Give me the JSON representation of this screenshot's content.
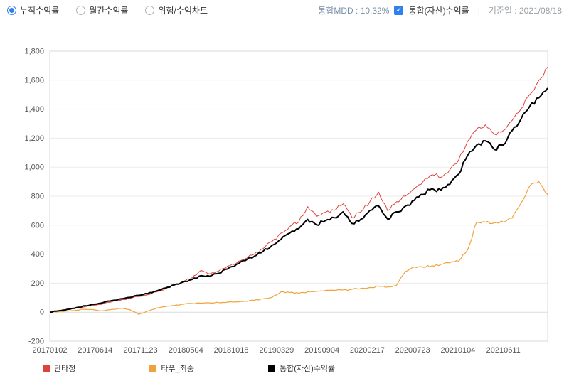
{
  "header": {
    "radio_group": [
      {
        "label": "누적수익률",
        "selected": true
      },
      {
        "label": "월간수익률",
        "selected": false
      },
      {
        "label": "위험/수익차트",
        "selected": false
      }
    ],
    "mdd_text": "통합MDD : 10.32%",
    "overlay_checkbox": {
      "label": "통합(자산)수익률",
      "checked": true
    },
    "divider_glyph": "|",
    "base_date_text": "기준일 : 2021/08/18"
  },
  "chart_data": {
    "type": "line",
    "title": "",
    "xlabel": "",
    "ylabel": "",
    "ylim": [
      -200,
      1800
    ],
    "y_ticks": [
      -200,
      0,
      200,
      400,
      600,
      800,
      1000,
      1200,
      1400,
      1600,
      1800
    ],
    "grid": "horizontal",
    "legend_position": "bottom",
    "x_labels": [
      "20170102",
      "20170614",
      "20171123",
      "20180504",
      "20181018",
      "20190329",
      "20190904",
      "20200217",
      "20200723",
      "20210104",
      "20210611"
    ],
    "x_end_date": "20210818",
    "series": [
      {
        "name": "단타정",
        "color": "#e0413a",
        "width": 1,
        "values": [
          0,
          8,
          18,
          28,
          38,
          48,
          58,
          72,
          84,
          95,
          108,
          120,
          140,
          162,
          186,
          214,
          238,
          288,
          264,
          284,
          318,
          338,
          368,
          400,
          438,
          488,
          545,
          590,
          622,
          728,
          660,
          688,
          702,
          748,
          652,
          692,
          762,
          828,
          700,
          762,
          800,
          852,
          902,
          948,
          930,
          982,
          1052,
          1180,
          1258,
          1292,
          1228,
          1252,
          1322,
          1402,
          1502,
          1598,
          1690
        ]
      },
      {
        "name": "타푸_최중",
        "color": "#f0a33c",
        "width": 1.2,
        "values": [
          0,
          4,
          8,
          14,
          20,
          16,
          10,
          20,
          26,
          18,
          -15,
          8,
          28,
          38,
          45,
          55,
          60,
          62,
          64,
          66,
          70,
          72,
          76,
          82,
          92,
          102,
          140,
          136,
          130,
          140,
          144,
          150,
          150,
          154,
          158,
          164,
          170,
          180,
          174,
          186,
          280,
          312,
          310,
          320,
          330,
          340,
          352,
          430,
          620,
          622,
          616,
          622,
          648,
          752,
          872,
          902,
          812
        ]
      },
      {
        "name": "통합(자산)수익률",
        "color": "#000000",
        "width": 2,
        "values": [
          0,
          10,
          20,
          32,
          44,
          55,
          66,
          80,
          92,
          102,
          116,
          128,
          146,
          166,
          188,
          210,
          226,
          252,
          248,
          268,
          298,
          330,
          356,
          386,
          420,
          462,
          502,
          546,
          576,
          640,
          602,
          632,
          652,
          692,
          612,
          642,
          702,
          732,
          642,
          692,
          732,
          772,
          812,
          852,
          842,
          882,
          952,
          1082,
          1152,
          1182,
          1122,
          1152,
          1252,
          1332,
          1422,
          1478,
          1545
        ]
      }
    ]
  }
}
